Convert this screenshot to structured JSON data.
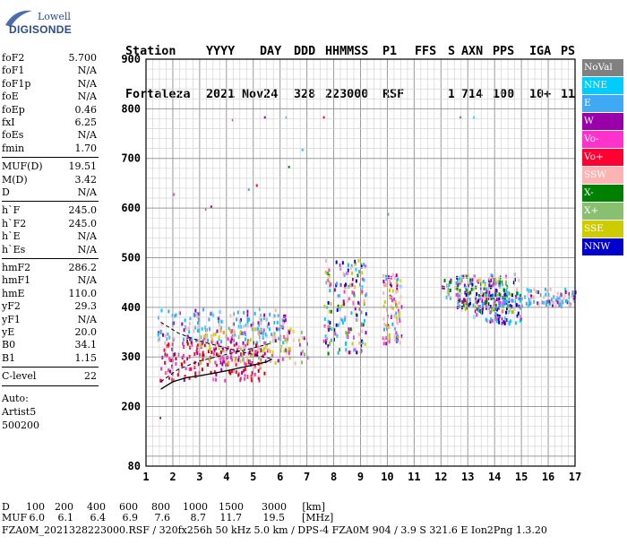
{
  "logo": {
    "line1": "Lowell",
    "line2": "DIGISONDE"
  },
  "header": {
    "labels": [
      "Station",
      "YYYY",
      "DAY",
      "DDD",
      "HHMMSS",
      "P1",
      "FFS",
      "S",
      "AXN",
      "PPS",
      "IGA",
      "PS"
    ],
    "values": [
      "Fortaleza",
      "2021",
      "Nov24",
      "328",
      "223000",
      "RSF",
      "",
      "1",
      "714",
      "100",
      "10+",
      "11"
    ]
  },
  "params": {
    "group1": [
      {
        "label": "foF2",
        "value": "5.700"
      },
      {
        "label": "foF1",
        "value": "N/A"
      },
      {
        "label": "foF1p",
        "value": "N/A"
      },
      {
        "label": "foE",
        "value": "N/A"
      },
      {
        "label": "foEp",
        "value": "0.46"
      },
      {
        "label": "fxI",
        "value": "6.25"
      },
      {
        "label": "foEs",
        "value": "N/A"
      },
      {
        "label": "fmin",
        "value": "1.70"
      }
    ],
    "group2": [
      {
        "label": "MUF(D)",
        "value": "19.51"
      },
      {
        "label": "M(D)",
        "value": "3.42"
      },
      {
        "label": "D",
        "value": "N/A"
      }
    ],
    "group3": [
      {
        "label": "h`F",
        "value": "245.0"
      },
      {
        "label": "h`F2",
        "value": "245.0"
      },
      {
        "label": "h`E",
        "value": "N/A"
      },
      {
        "label": "h`Es",
        "value": "N/A"
      }
    ],
    "group4": [
      {
        "label": "hmF2",
        "value": "286.2"
      },
      {
        "label": "hmF1",
        "value": "N/A"
      },
      {
        "label": "hmE",
        "value": "110.0"
      },
      {
        "label": "yF2",
        "value": "29.3"
      },
      {
        "label": "yF1",
        "value": "N/A"
      },
      {
        "label": "yE",
        "value": "20.0"
      },
      {
        "label": "B0",
        "value": "34.1"
      },
      {
        "label": "B1",
        "value": "1.15"
      }
    ],
    "group5": [
      {
        "label": "C-level",
        "value": "22"
      }
    ],
    "auto_lines": [
      "Auto:",
      "Artist5",
      "500200"
    ]
  },
  "legend": [
    {
      "label": "NoVal",
      "bg": "#808080",
      "fg": "#ffffff"
    },
    {
      "label": "NNE",
      "bg": "#00ccff",
      "fg": "#ffffff"
    },
    {
      "label": "E",
      "bg": "#3fa9f5",
      "fg": "#ffffff"
    },
    {
      "label": "W",
      "bg": "#9900aa",
      "fg": "#ffffff"
    },
    {
      "label": "Vo-",
      "bg": "#ff33cc",
      "fg": "#ffffff"
    },
    {
      "label": "Vo+",
      "bg": "#ff0033",
      "fg": "#ffffff"
    },
    {
      "label": "SSW",
      "bg": "#ffb3b3",
      "fg": "#ffffff"
    },
    {
      "label": "X-",
      "bg": "#008000",
      "fg": "#ffffff"
    },
    {
      "label": "X+",
      "bg": "#88c070",
      "fg": "#ffffff"
    },
    {
      "label": "SSE",
      "bg": "#cccc00",
      "fg": "#ffffff"
    },
    {
      "label": "NNW",
      "bg": "#0000cc",
      "fg": "#ffffff"
    }
  ],
  "footer": {
    "d_label": "D",
    "d_values": [
      "100",
      "200",
      "400",
      "600",
      "800",
      "1000",
      "1500",
      "3000",
      "[km]"
    ],
    "muf_label": "MUF",
    "muf_values": [
      "6.0",
      "6.1",
      "6.4",
      "6.9",
      "7.6",
      "8.7",
      "11.7",
      "19.5",
      "[MHz]"
    ],
    "file_line": "FZA0M_2021328223000.RSF / 320fx256h 50 kHz 5.0 km / DPS-4 FZA0M 904 / 3.9 S 321.6 E   Ion2Png 1.3.20"
  },
  "chart_data": {
    "type": "scatter",
    "title": "",
    "xlabel": "",
    "ylabel": "",
    "xlim": [
      1,
      17
    ],
    "ylim": [
      80,
      900
    ],
    "xticks": [
      "1",
      "2",
      "3",
      "4",
      "5",
      "6",
      "7",
      "8",
      "9",
      "10",
      "11",
      "12",
      "13",
      "14",
      "15",
      "16",
      "17"
    ],
    "yticks": [
      "80",
      "200",
      "300",
      "400",
      "500",
      "600",
      "700",
      "800",
      "900"
    ],
    "grid": true,
    "legend_position": "right",
    "clusters": [
      {
        "name": "E",
        "freq": [
          1.4,
          6.2
        ],
        "height": [
          330,
          400
        ]
      },
      {
        "name": "Vo+",
        "freq": [
          1.5,
          5.5
        ],
        "height": [
          255,
          335
        ]
      },
      {
        "name": "SSE",
        "freq": [
          3.0,
          7.0
        ],
        "height": [
          290,
          360
        ]
      },
      {
        "name": "NNE",
        "freq": [
          7.6,
          9.2
        ],
        "height": [
          310,
          500
        ]
      },
      {
        "name": "W",
        "freq": [
          9.8,
          10.5
        ],
        "height": [
          330,
          470
        ]
      },
      {
        "name": "X-",
        "freq": [
          12.0,
          14.5
        ],
        "height": [
          400,
          460
        ]
      },
      {
        "name": "NNW",
        "freq": [
          13.2,
          15.0
        ],
        "height": [
          370,
          430
        ]
      },
      {
        "name": "NNE",
        "freq": [
          12.5,
          15.0
        ],
        "height": [
          390,
          470
        ]
      },
      {
        "name": "E",
        "freq": [
          15.0,
          17.0
        ],
        "height": [
          405,
          440
        ]
      }
    ],
    "scattered_points": [
      {
        "freq": 3.2,
        "height": 600
      },
      {
        "freq": 3.4,
        "height": 605
      },
      {
        "freq": 4.8,
        "height": 640
      },
      {
        "freq": 5.1,
        "height": 648
      },
      {
        "freq": 6.3,
        "height": 685
      },
      {
        "freq": 6.8,
        "height": 720
      },
      {
        "freq": 4.2,
        "height": 780
      },
      {
        "freq": 5.4,
        "height": 785
      },
      {
        "freq": 6.2,
        "height": 785
      },
      {
        "freq": 7.6,
        "height": 785
      },
      {
        "freq": 12.7,
        "height": 785
      },
      {
        "freq": 13.2,
        "height": 785
      },
      {
        "freq": 2.0,
        "height": 630
      },
      {
        "freq": 1.5,
        "height": 180
      },
      {
        "freq": 10.0,
        "height": 590
      }
    ],
    "profile_curve": {
      "freq": [
        1.55,
        2.0,
        2.5,
        3.0,
        3.5,
        4.0,
        4.5,
        5.0,
        5.5,
        5.7
      ],
      "height": [
        235,
        250,
        258,
        262,
        267,
        272,
        278,
        284,
        290,
        296
      ]
    },
    "bounding_curves": [
      {
        "freq": [
          1.55,
          2.2,
          3.0,
          4.0,
          5.0,
          5.7
        ],
        "height": [
          250,
          275,
          292,
          305,
          318,
          328
        ]
      },
      {
        "freq": [
          1.55,
          2.2,
          3.0,
          4.0,
          5.0,
          5.7
        ],
        "height": [
          370,
          348,
          332,
          318,
          305,
          296
        ]
      }
    ]
  }
}
